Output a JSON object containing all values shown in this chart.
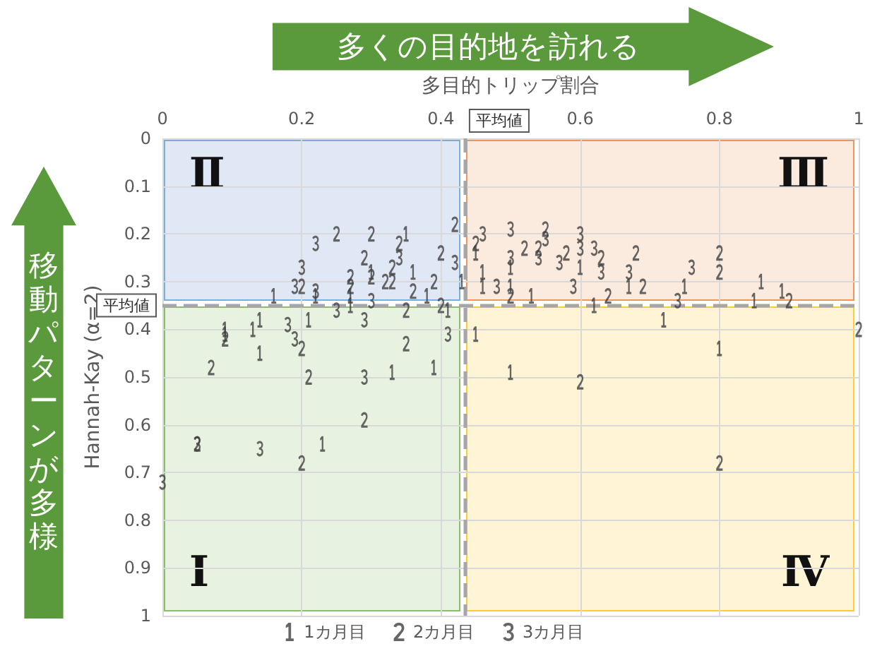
{
  "chart_data": {
    "type": "scatter",
    "xlabel": "多目的トリップ割合",
    "ylabel": "Hannah-Kay (α=2)",
    "xlim": [
      0,
      1
    ],
    "xticks": [
      0,
      0.2,
      0.4,
      0.6,
      0.8,
      1
    ],
    "ylim": [
      1,
      0
    ],
    "yticks": [
      0,
      0.1,
      0.2,
      0.3,
      0.4,
      0.5,
      0.6,
      0.7,
      0.8,
      0.9,
      1
    ],
    "grid": true,
    "legend": "bottom",
    "ref_lines": [
      {
        "axis": "x",
        "value": 0.435,
        "label": "平均値",
        "color": "#a6a6a6",
        "line_style": "dashed"
      },
      {
        "axis": "y",
        "value": 0.35,
        "label": "平均値",
        "color": "#a6a6a6",
        "line_style": "dashed"
      }
    ],
    "annotations": [
      "多くの目的地を訪れる",
      "移動パターンが多様",
      "Ⅱ",
      "Ⅲ",
      "Ⅰ",
      "Ⅳ"
    ],
    "series": [
      {
        "name": "1カ月目",
        "color": "#404040",
        "x": [
          0.35,
          0.3,
          0.36,
          0.16,
          0.22,
          0.27,
          0.38,
          0.27,
          0.41,
          0.43,
          0.09,
          0.13,
          0.14,
          0.21,
          0.09,
          0.14,
          0.33,
          0.39,
          0.23,
          0.45,
          0.5,
          0.46,
          0.6,
          0.67,
          0.46,
          0.5,
          0.53,
          0.62,
          0.75,
          0.86,
          0.89,
          0.85,
          0.72,
          0.45,
          0.8,
          0.5
        ],
        "values": [
          0.2,
          0.28,
          0.28,
          0.33,
          0.33,
          0.33,
          0.33,
          0.35,
          0.36,
          0.3,
          0.41,
          0.4,
          0.38,
          0.38,
          0.4,
          0.45,
          0.49,
          0.48,
          0.64,
          0.24,
          0.27,
          0.28,
          0.27,
          0.31,
          0.31,
          0.31,
          0.33,
          0.35,
          0.31,
          0.3,
          0.32,
          0.34,
          0.38,
          0.41,
          0.44,
          0.49
        ]
      },
      {
        "name": "2カ月目",
        "color": "#404040",
        "x": [
          0.25,
          0.3,
          0.34,
          0.42,
          0.4,
          0.29,
          0.27,
          0.3,
          0.33,
          0.32,
          0.33,
          0.39,
          0.2,
          0.27,
          0.36,
          0.35,
          0.4,
          0.09,
          0.2,
          0.35,
          0.07,
          0.21,
          0.29,
          0.05,
          0.2,
          0.45,
          0.55,
          0.52,
          0.54,
          0.58,
          0.63,
          0.68,
          0.69,
          0.8,
          0.8,
          0.5,
          0.64,
          0.9,
          1,
          0.6,
          0.8
        ],
        "values": [
          0.2,
          0.2,
          0.22,
          0.18,
          0.24,
          0.25,
          0.29,
          0.29,
          0.27,
          0.3,
          0.3,
          0.3,
          0.31,
          0.31,
          0.32,
          0.36,
          0.35,
          0.42,
          0.44,
          0.43,
          0.48,
          0.5,
          0.59,
          0.64,
          0.68,
          0.22,
          0.19,
          0.23,
          0.23,
          0.24,
          0.25,
          0.24,
          0.31,
          0.24,
          0.28,
          0.33,
          0.33,
          0.34,
          0.4,
          0.51,
          0.68
        ]
      },
      {
        "name": "3カ月目",
        "color": "#404040",
        "x": [
          0.22,
          0.34,
          0.2,
          0.19,
          0.22,
          0.3,
          0.25,
          0.42,
          0.18,
          0.29,
          0.41,
          0.19,
          0.29,
          0.05,
          0.14,
          0,
          0.46,
          0.5,
          0.55,
          0.54,
          0.6,
          0.57,
          0.6,
          0.62,
          0.5,
          0.63,
          0.67,
          0.59,
          0.76,
          0.48,
          0.74
        ],
        "values": [
          0.22,
          0.25,
          0.27,
          0.31,
          0.32,
          0.34,
          0.36,
          0.26,
          0.39,
          0.38,
          0.41,
          0.42,
          0.5,
          0.64,
          0.65,
          0.72,
          0.2,
          0.19,
          0.21,
          0.25,
          0.2,
          0.26,
          0.23,
          0.23,
          0.25,
          0.28,
          0.28,
          0.31,
          0.27,
          0.31,
          0.34
        ]
      }
    ]
  }
}
